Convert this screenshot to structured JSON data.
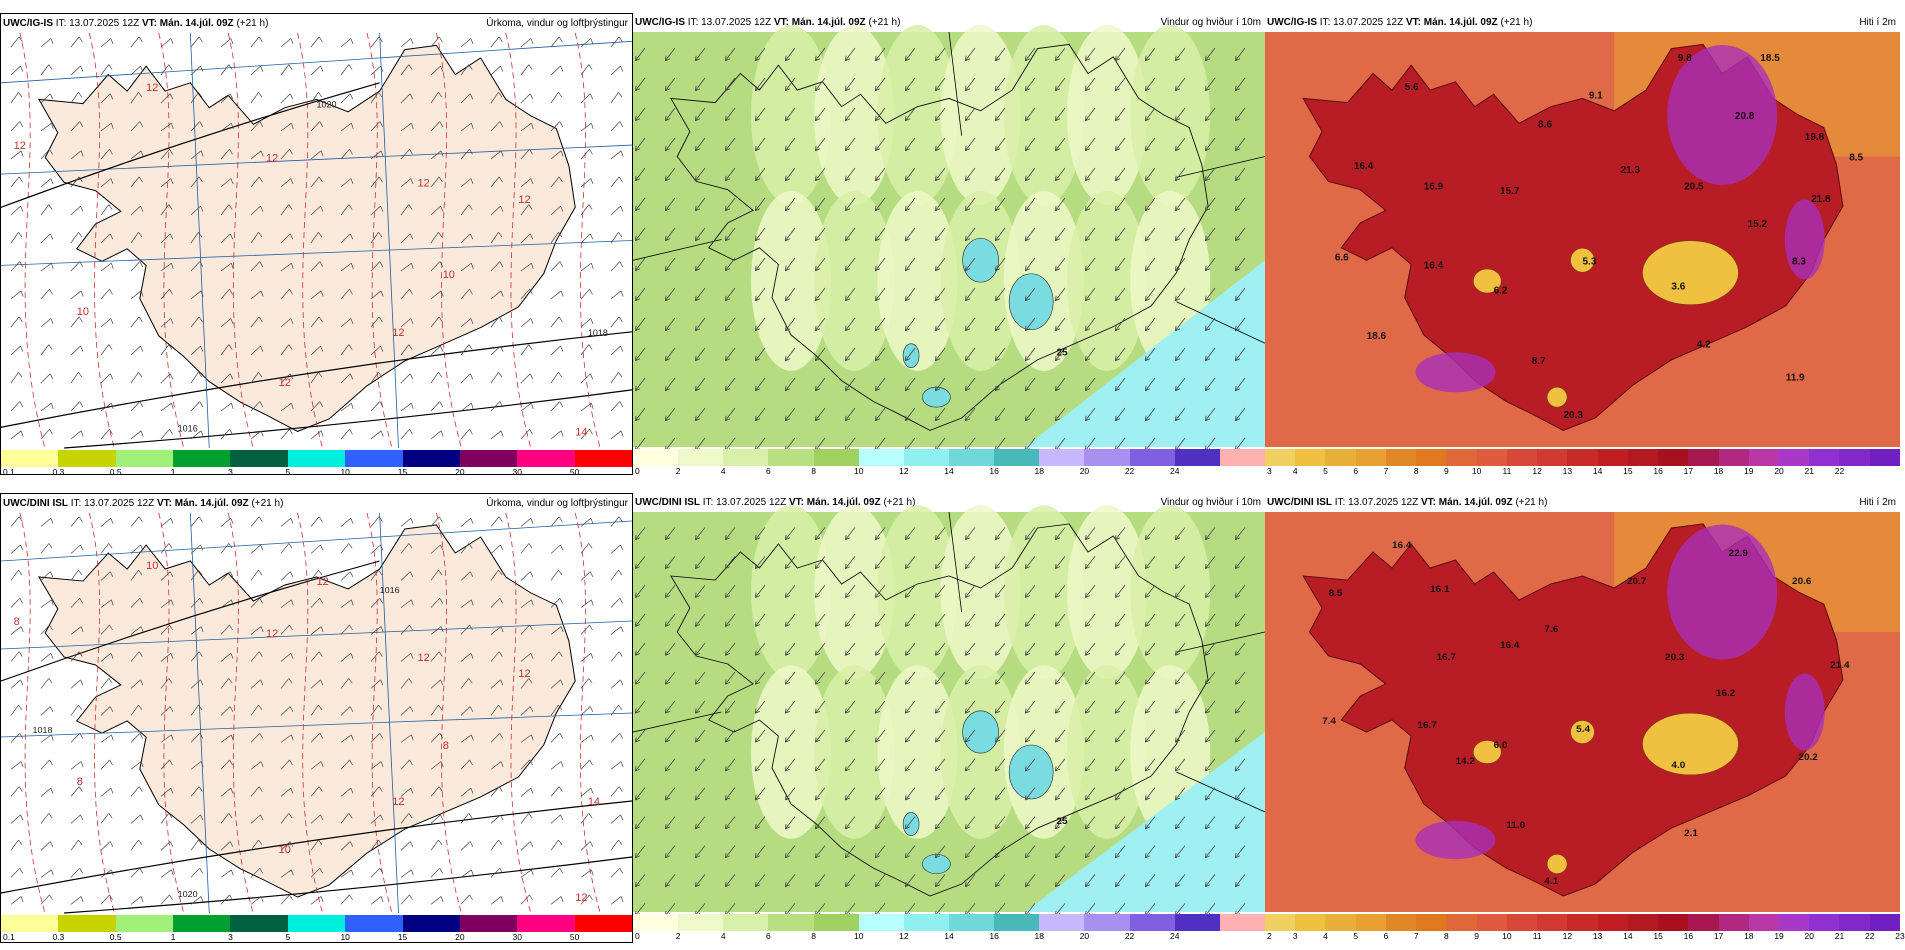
{
  "rows": [
    {
      "model": "UWC/IG-IS",
      "panels": [
        {
          "kind": "precip",
          "it": "IT: 13.07.2025 12Z",
          "vt_label": "VT:",
          "vt": "Mán. 14.júl. 09Z",
          "lead": "(+21 h)",
          "right_title": "Úrkoma, vindur og loftþrýstingur",
          "colorbar_ticks": [
            "0.1",
            "0.3",
            "0.5",
            "1",
            "3",
            "5",
            "10",
            "15",
            "20",
            "30",
            "50"
          ],
          "map_labels": [
            "12",
            "12",
            "12",
            "12",
            "12",
            "10",
            "10",
            "12",
            "12",
            "14",
            "1020",
            "1018",
            "1016"
          ]
        },
        {
          "kind": "wind",
          "it": "IT: 13.07.2025 12Z",
          "vt_label": "VT:",
          "vt": "Mán. 14.júl. 09Z",
          "lead": "(+21 h)",
          "right_title": "Vindur og hviður í 10m",
          "colorbar_ticks": [
            "0",
            "2",
            "4",
            "6",
            "8",
            "10",
            "12",
            "14",
            "16",
            "18",
            "20",
            "22",
            "24"
          ],
          "map_labels": [
            "25"
          ]
        },
        {
          "kind": "temp",
          "it": "IT: 13.07.2025 12Z",
          "vt_label": "VT:",
          "vt": "Mán. 14.júl. 09Z",
          "lead": "(+21 h)",
          "right_title": "Hiti í 2m",
          "colorbar_ticks": [
            "3",
            "4",
            "5",
            "6",
            "7",
            "8",
            "9",
            "10",
            "11",
            "12",
            "13",
            "14",
            "15",
            "16",
            "17",
            "18",
            "19",
            "20",
            "21",
            "22"
          ],
          "map_labels": [
            "9.8",
            "18.5",
            "5.6",
            "9.1",
            "20.8",
            "8.6",
            "19.8",
            "16.4",
            "21.3",
            "8.5",
            "16.9",
            "15.7",
            "20.5",
            "21.8",
            "15.2",
            "6.6",
            "5.3",
            "8.3",
            "16.4",
            "6.2",
            "3.6",
            "18.6",
            "4.2",
            "8.7",
            "11.9",
            "20.3"
          ]
        }
      ]
    },
    {
      "model": "UWC/DINI ISL",
      "panels": [
        {
          "kind": "precip",
          "it": "IT: 13.07.2025 12Z",
          "vt_label": "VT:",
          "vt": "Mán. 14.júl. 09Z",
          "lead": "(+21 h)",
          "right_title": "Úrkoma, vindur og loftþrýstingur",
          "colorbar_ticks": [
            "0.1",
            "0.3",
            "0.5",
            "1",
            "3",
            "5",
            "10",
            "15",
            "20",
            "30",
            "50"
          ],
          "map_labels": [
            "8",
            "10",
            "12",
            "12",
            "12",
            "8",
            "8",
            "10",
            "12",
            "12",
            "12",
            "14",
            "1020",
            "1018",
            "1016"
          ]
        },
        {
          "kind": "wind",
          "it": "IT: 13.07.2025 12Z",
          "vt_label": "VT:",
          "vt": "Mán. 14.júl. 09Z",
          "lead": "(+21 h)",
          "right_title": "Vindur og hviður í 10m",
          "colorbar_ticks": [
            "0",
            "2",
            "4",
            "6",
            "8",
            "10",
            "12",
            "14",
            "16",
            "18",
            "20",
            "22",
            "24"
          ],
          "map_labels": [
            "25"
          ]
        },
        {
          "kind": "temp",
          "it": "IT: 13.07.2025 12Z",
          "vt_label": "VT:",
          "vt": "Mán. 14.júl. 09Z",
          "lead": "(+21 h)",
          "right_title": "Hiti í 2m",
          "colorbar_ticks": [
            "2",
            "3",
            "4",
            "5",
            "6",
            "7",
            "8",
            "9",
            "10",
            "11",
            "12",
            "13",
            "14",
            "15",
            "16",
            "17",
            "18",
            "19",
            "20",
            "21",
            "22",
            "23"
          ],
          "map_labels": [
            "16.4",
            "22.9",
            "8.5",
            "16.1",
            "20.7",
            "20.6",
            "7.6",
            "16.4",
            "16.7",
            "20.3",
            "21.4",
            "16.2",
            "7.4",
            "16.7",
            "6.0",
            "5.4",
            "4.0",
            "14.2",
            "20.2",
            "11.0",
            "2.1",
            "4.1"
          ]
        }
      ]
    }
  ],
  "colorbars": {
    "precip": [
      "#ffff99",
      "#c8d400",
      "#a0f07a",
      "#00a030",
      "#006040",
      "#00f0e0",
      "#3060ff",
      "#000080",
      "#800060",
      "#ff0080",
      "#ff0000"
    ],
    "wind": [
      "#ffffe0",
      "#eef8c8",
      "#d8f0a8",
      "#b8e080",
      "#a0d060",
      "#b8ffff",
      "#90f0f0",
      "#70d8d8",
      "#48b8b8",
      "#c8b8ff",
      "#a890f0",
      "#8060e0",
      "#5030c0",
      "#ffb0b0"
    ],
    "temp": [
      "#f0d060",
      "#f0c040",
      "#e8b038",
      "#e8a030",
      "#e08828",
      "#e07820",
      "#e06838",
      "#e05a40",
      "#d84838",
      "#d03a30",
      "#c82a28",
      "#c01e22",
      "#b41820",
      "#a81020",
      "#a81850",
      "#b02880",
      "#b838a8",
      "#a838c8",
      "#9030d0",
      "#8028c8",
      "#7020c0"
    ]
  }
}
